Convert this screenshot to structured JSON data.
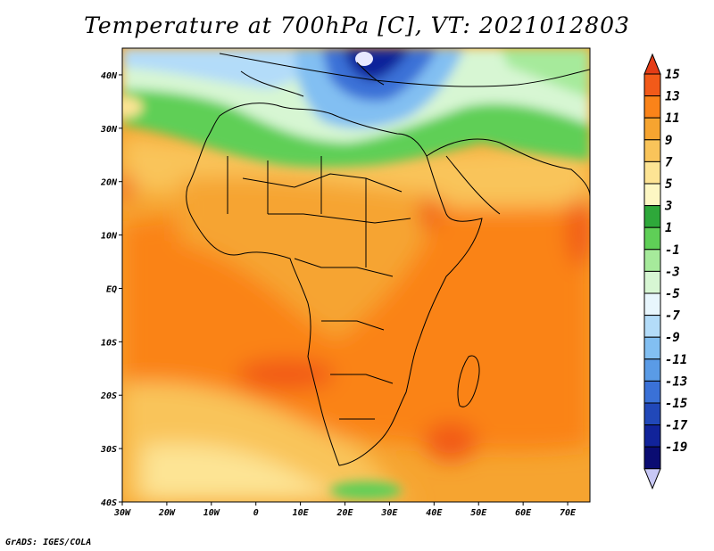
{
  "title": "Temperature at 700hPa [C], VT: 2021012803",
  "credit": "GrADS: IGES/COLA",
  "map": {
    "lon_labels": [
      "30W",
      "20W",
      "10W",
      "0",
      "10E",
      "20E",
      "30E",
      "40E",
      "50E",
      "60E",
      "70E"
    ],
    "lat_labels": [
      "40N",
      "30N",
      "20N",
      "10N",
      "EQ",
      "10S",
      "20S",
      "30S",
      "40S"
    ],
    "lon_range": [
      -30,
      75
    ],
    "lat_range": [
      -40,
      45
    ],
    "variable": "temperature",
    "level_hpa": 700,
    "units": "C",
    "valid_time": "2021012803"
  },
  "colorbar": {
    "levels": [
      "15",
      "13",
      "11",
      "9",
      "7",
      "5",
      "3",
      "1",
      "-1",
      "-3",
      "-5",
      "-7",
      "-9",
      "-11",
      "-13",
      "-15",
      "-17",
      "-19"
    ],
    "colors": [
      "#e43c16",
      "#f25a19",
      "#fa8319",
      "#f6a430",
      "#f9c45a",
      "#fde494",
      "#fdf7c3",
      "#2ea83a",
      "#5fcf57",
      "#a6ea9b",
      "#d7f6d3",
      "#e8f6fd",
      "#b3dcf9",
      "#82bff2",
      "#5a9be6",
      "#3a71d7",
      "#2148b9",
      "#11239a",
      "#0a0c72",
      "#c8c8f5"
    ]
  }
}
